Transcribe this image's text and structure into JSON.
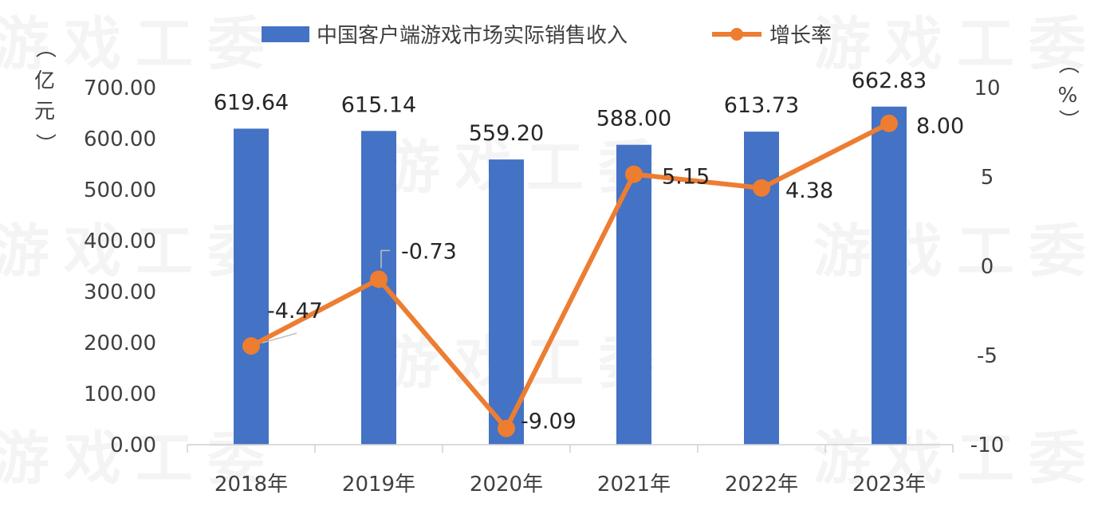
{
  "watermark": "游戏工委",
  "chart_data": {
    "type": "bar",
    "categories": [
      "2018年",
      "2019年",
      "2020年",
      "2021年",
      "2022年",
      "2023年"
    ],
    "series": [
      {
        "name": "中国客户端游戏市场实际销售收入",
        "type": "bar",
        "axis": "left",
        "color": "#4472C4",
        "values": [
          619.64,
          615.14,
          559.2,
          588.0,
          613.73,
          662.83
        ],
        "labels": [
          "619.64",
          "615.14",
          "559.20",
          "588.00",
          "613.73",
          "662.83"
        ]
      },
      {
        "name": "增长率",
        "type": "line",
        "axis": "right",
        "color": "#ED7D31",
        "values": [
          -4.47,
          -0.73,
          -9.09,
          5.15,
          4.38,
          8.0
        ],
        "labels": [
          "-4.47",
          "-0.73",
          "-9.09",
          "5.15",
          "4.38",
          "8.00"
        ]
      }
    ],
    "y_left": {
      "unit": "亿元",
      "range": [
        0,
        700
      ],
      "ticks": [
        "0.00",
        "100.00",
        "200.00",
        "300.00",
        "400.00",
        "500.00",
        "600.00",
        "700.00"
      ]
    },
    "y_right": {
      "unit": "%",
      "range": [
        -10,
        10
      ],
      "ticks": [
        "-10",
        "-5",
        "0",
        "5",
        "10"
      ]
    },
    "grid": false,
    "legend": "top-center",
    "title": ""
  }
}
